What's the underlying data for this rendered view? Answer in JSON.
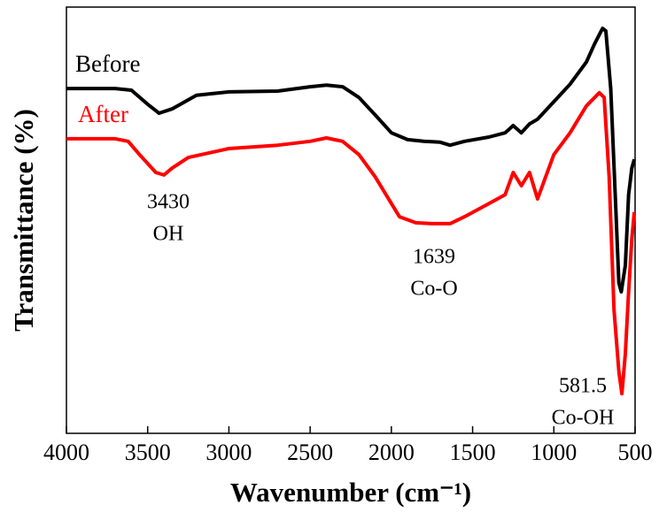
{
  "chart_data": {
    "type": "line",
    "xlabel": "Wavenumber (cm⁻¹)",
    "ylabel": "Transmittance (%)",
    "xlim": [
      4000,
      500
    ],
    "xticks": [
      4000,
      3500,
      3000,
      2500,
      2000,
      1500,
      1000,
      500
    ],
    "ylim": [
      0,
      100
    ],
    "yticks": [],
    "grid": false,
    "series": [
      {
        "name": "Before",
        "color": "#000000",
        "x": [
          4000,
          3700,
          3600,
          3500,
          3430,
          3350,
          3200,
          3000,
          2700,
          2500,
          2400,
          2300,
          2200,
          2100,
          2000,
          1900,
          1800,
          1700,
          1639,
          1550,
          1400,
          1300,
          1250,
          1200,
          1150,
          1100,
          1000,
          900,
          800,
          750,
          700,
          680,
          650,
          620,
          600,
          585,
          560,
          540,
          520,
          505
        ],
        "values": [
          80.9,
          80.9,
          80.5,
          77.2,
          75.1,
          76.1,
          79.3,
          80.1,
          80.3,
          81.3,
          81.7,
          81.3,
          78.8,
          74.7,
          70.5,
          68.9,
          68.5,
          68.3,
          67.6,
          68.5,
          69.5,
          70.5,
          72.2,
          70.5,
          72.6,
          73.7,
          77.8,
          81.9,
          87.1,
          91.3,
          95.0,
          94.4,
          80.9,
          53.9,
          35.3,
          33.2,
          39.4,
          56.0,
          62.2,
          64.3
        ]
      },
      {
        "name": "After",
        "color": "#ff0000",
        "x": [
          4000,
          3700,
          3620,
          3550,
          3450,
          3400,
          3350,
          3250,
          3000,
          2700,
          2500,
          2400,
          2300,
          2200,
          2100,
          2000,
          1950,
          1850,
          1750,
          1639,
          1550,
          1400,
          1300,
          1250,
          1200,
          1150,
          1100,
          1050,
          1000,
          900,
          800,
          720,
          690,
          660,
          630,
          600,
          581.5,
          560,
          540,
          520,
          505
        ],
        "values": [
          69.1,
          69.1,
          68.5,
          65.4,
          61.2,
          60.6,
          62.2,
          64.7,
          66.8,
          67.6,
          68.5,
          69.3,
          68.5,
          65.4,
          60.2,
          53.9,
          50.8,
          49.4,
          49.2,
          49.2,
          50.8,
          53.9,
          56.0,
          61.2,
          58.1,
          61.2,
          55.0,
          60.2,
          65.4,
          70.5,
          76.8,
          79.9,
          78.8,
          60.2,
          29.0,
          14.5,
          9.3,
          18.7,
          33.2,
          45.6,
          51.9
        ]
      }
    ],
    "annotations": [
      [
        "3430",
        "OH"
      ],
      [
        "1639",
        "Co-O"
      ],
      [
        "581.5",
        "Co-OH"
      ]
    ]
  }
}
